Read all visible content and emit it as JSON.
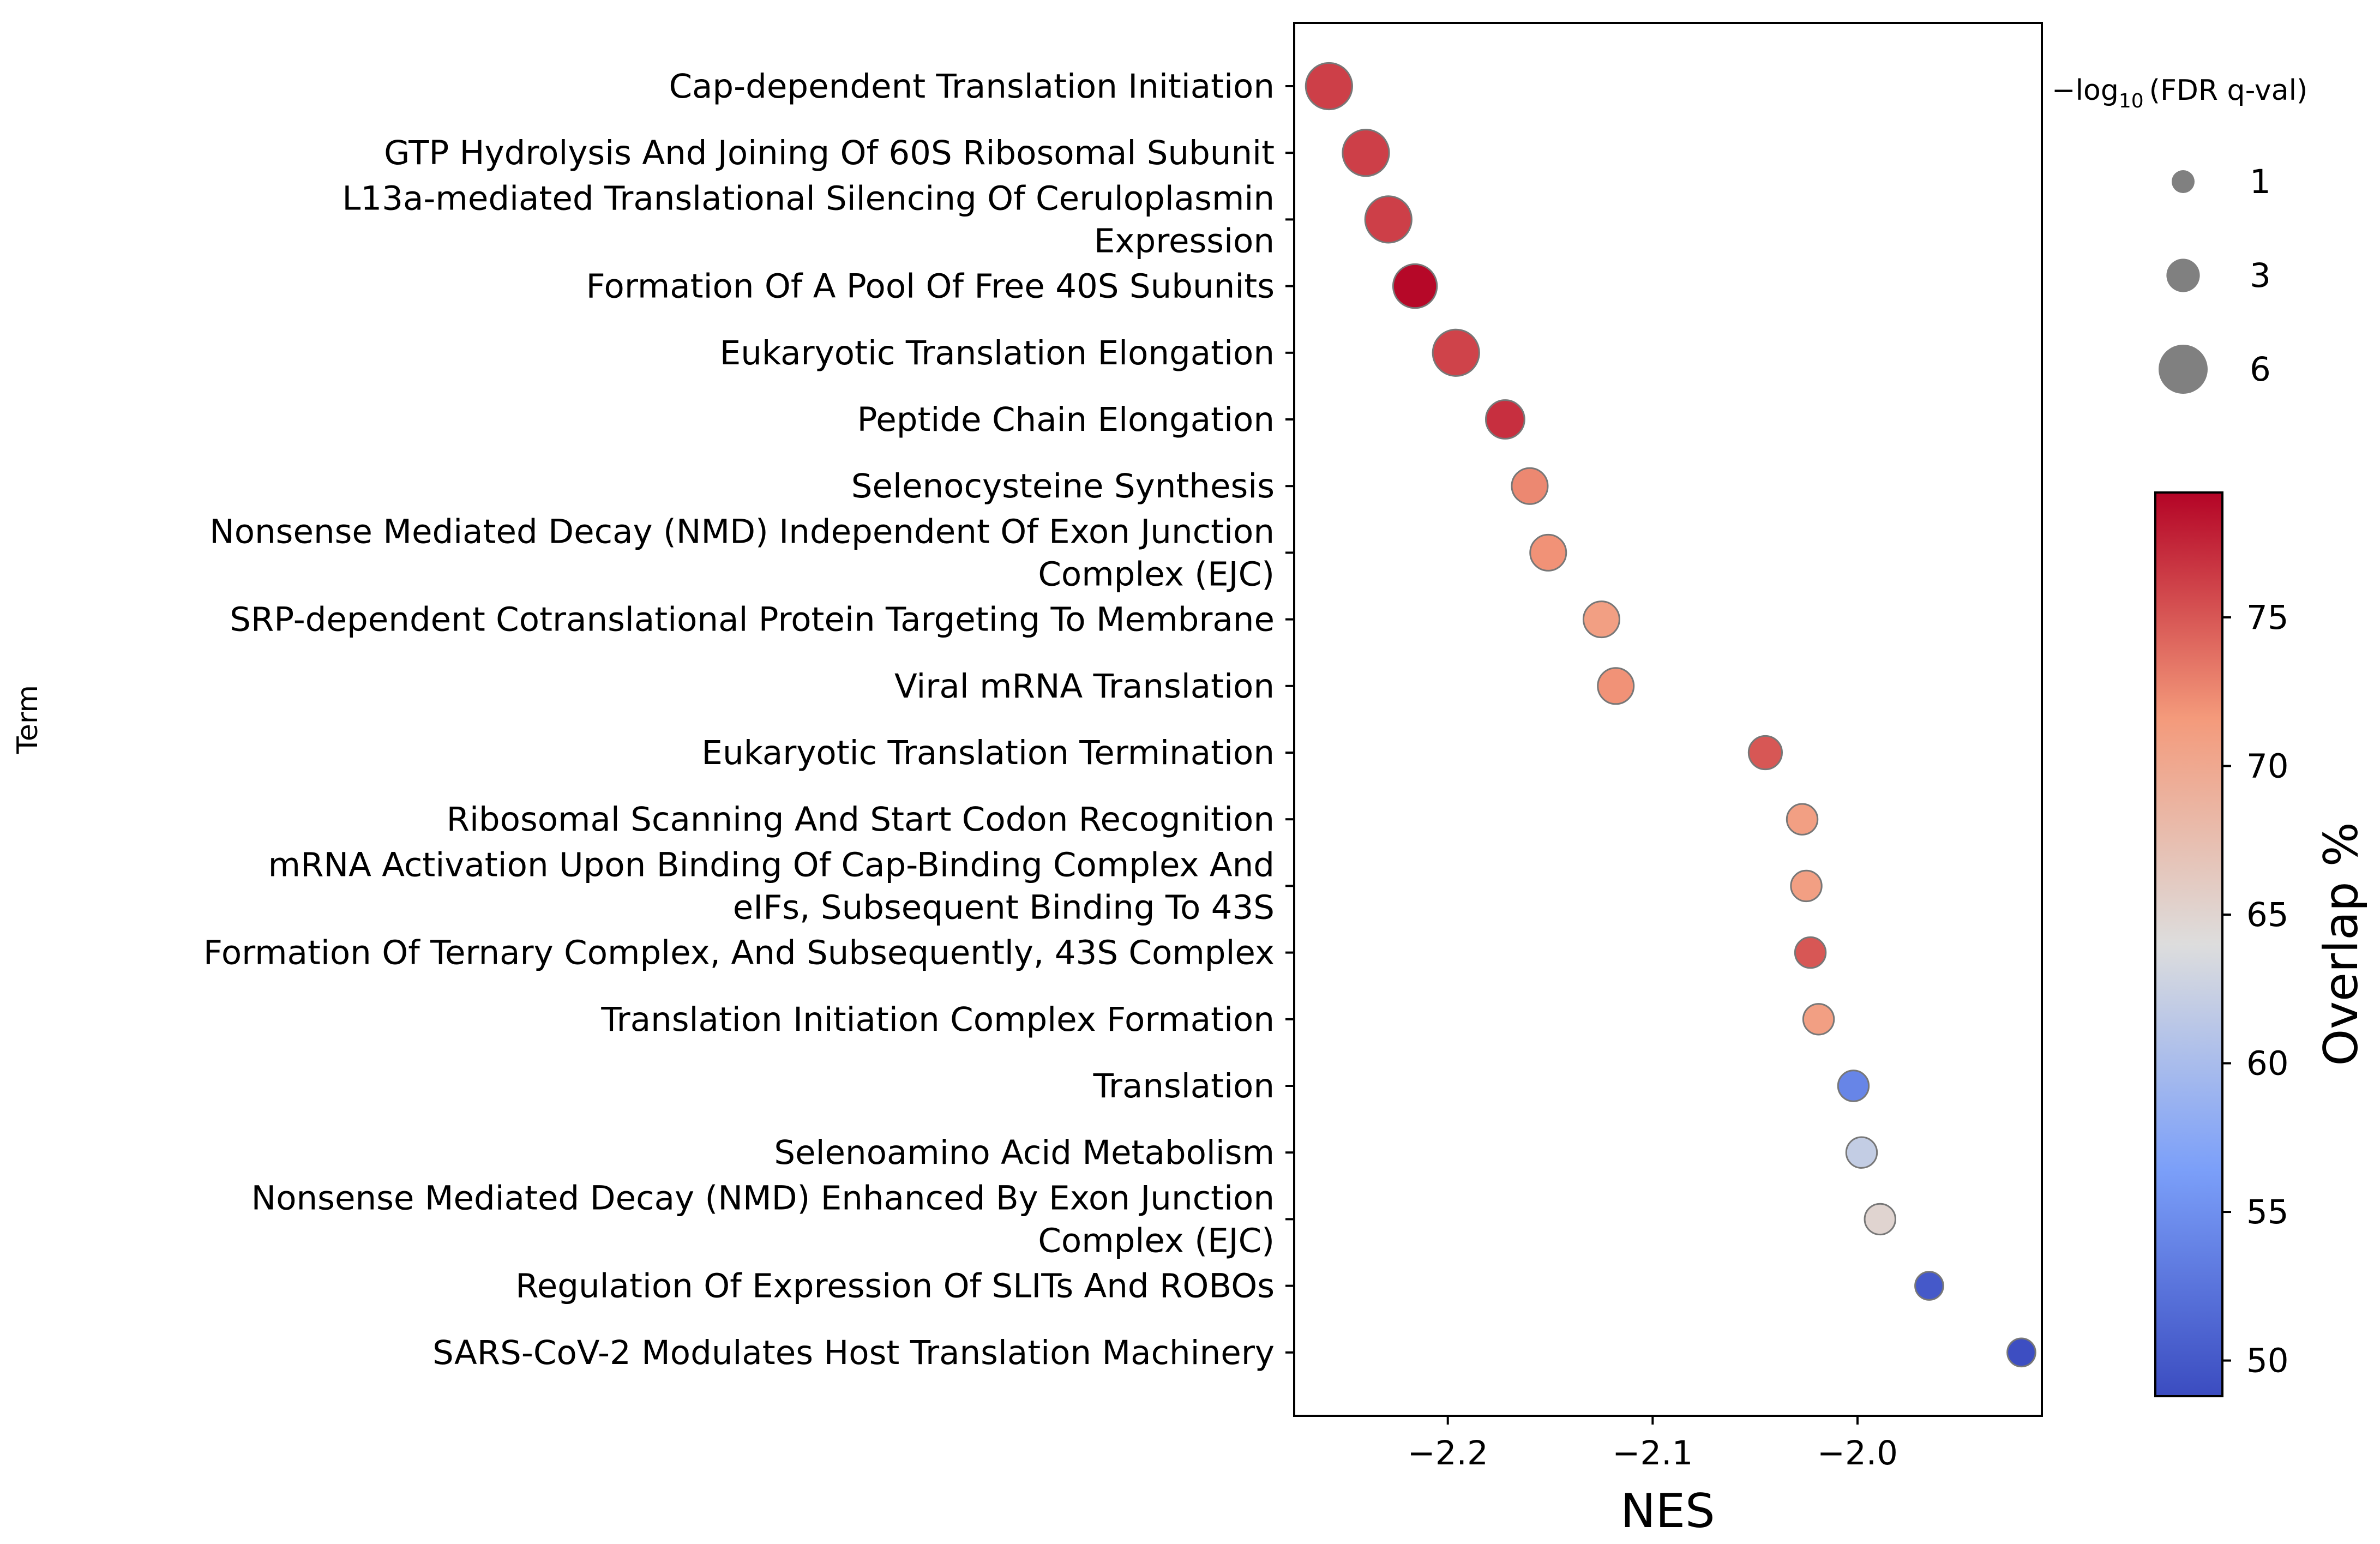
{
  "chart_data": {
    "type": "scatter",
    "title": "",
    "xlabel": "NES",
    "ylabel": "Term",
    "xlim": [
      -2.275,
      -1.91
    ],
    "xticks": [
      {
        "value": -2.2,
        "label": "−2.2"
      },
      {
        "value": -2.1,
        "label": "−2.1"
      },
      {
        "value": -2.0,
        "label": "−2.0"
      }
    ],
    "grid": false,
    "points": [
      {
        "term_lines": [
          "Cap-dependent Translation Initiation"
        ],
        "nes": -2.258,
        "overlap": 76.2,
        "neg_log10_fdr": 5.5
      },
      {
        "term_lines": [
          "GTP Hydrolysis And Joining Of 60S Ribosomal Subunit"
        ],
        "nes": -2.24,
        "overlap": 76.2,
        "neg_log10_fdr": 5.5
      },
      {
        "term_lines": [
          "L13a-mediated Translational Silencing Of Ceruloplasmin",
          "Expression"
        ],
        "nes": -2.229,
        "overlap": 76.2,
        "neg_log10_fdr": 5.5
      },
      {
        "term_lines": [
          "Formation Of A Pool Of Free 40S Subunits"
        ],
        "nes": -2.216,
        "overlap": 79.0,
        "neg_log10_fdr": 5.0
      },
      {
        "term_lines": [
          "Eukaryotic Translation Elongation"
        ],
        "nes": -2.196,
        "overlap": 76.0,
        "neg_log10_fdr": 5.5
      },
      {
        "term_lines": [
          "Peptide Chain Elongation"
        ],
        "nes": -2.172,
        "overlap": 77.0,
        "neg_log10_fdr": 4.0
      },
      {
        "term_lines": [
          "Selenocysteine Synthesis"
        ],
        "nes": -2.16,
        "overlap": 72.5,
        "neg_log10_fdr": 3.5
      },
      {
        "term_lines": [
          "Nonsense Mediated Decay (NMD) Independent Of Exon Junction",
          "Complex (EJC)"
        ],
        "nes": -2.151,
        "overlap": 72.0,
        "neg_log10_fdr": 3.5
      },
      {
        "term_lines": [
          "SRP-dependent Cotranslational Protein Targeting To Membrane"
        ],
        "nes": -2.125,
        "overlap": 71.0,
        "neg_log10_fdr": 3.5
      },
      {
        "term_lines": [
          "Viral mRNA Translation"
        ],
        "nes": -2.118,
        "overlap": 72.0,
        "neg_log10_fdr": 3.5
      },
      {
        "term_lines": [
          "Eukaryotic Translation Termination"
        ],
        "nes": -2.045,
        "overlap": 75.0,
        "neg_log10_fdr": 3.0
      },
      {
        "term_lines": [
          "Ribosomal Scanning And Start Codon Recognition"
        ],
        "nes": -2.027,
        "overlap": 71.0,
        "neg_log10_fdr": 2.5
      },
      {
        "term_lines": [
          "mRNA Activation Upon Binding Of Cap-Binding Complex And",
          "eIFs, Subsequent Binding To 43S"
        ],
        "nes": -2.025,
        "overlap": 71.0,
        "neg_log10_fdr": 2.5
      },
      {
        "term_lines": [
          "Formation Of Ternary Complex, And Subsequently, 43S Complex"
        ],
        "nes": -2.023,
        "overlap": 75.0,
        "neg_log10_fdr": 2.5
      },
      {
        "term_lines": [
          "Translation Initiation Complex Formation"
        ],
        "nes": -2.019,
        "overlap": 71.0,
        "neg_log10_fdr": 2.5
      },
      {
        "term_lines": [
          "Translation"
        ],
        "nes": -2.002,
        "overlap": 54.0,
        "neg_log10_fdr": 2.5
      },
      {
        "term_lines": [
          "Selenoamino Acid Metabolism"
        ],
        "nes": -1.998,
        "overlap": 62.0,
        "neg_log10_fdr": 2.5
      },
      {
        "term_lines": [
          "Nonsense Mediated Decay (NMD) Enhanced By Exon Junction",
          "Complex (EJC)"
        ],
        "nes": -1.989,
        "overlap": 65.0,
        "neg_log10_fdr": 2.5
      },
      {
        "term_lines": [
          "Regulation Of Expression Of SLITs And ROBOs"
        ],
        "nes": -1.965,
        "overlap": 50.0,
        "neg_log10_fdr": 2.0
      },
      {
        "term_lines": [
          "SARS-CoV-2 Modulates Host Translation Machinery"
        ],
        "nes": -1.92,
        "overlap": 49.0,
        "neg_log10_fdr": 2.0
      }
    ],
    "size_legend": {
      "title_prefix": "−log",
      "title_sub": "10",
      "title_suffix": "(FDR q-val)",
      "entries": [
        {
          "value": 1,
          "label": "1"
        },
        {
          "value": 3,
          "label": "3"
        },
        {
          "value": 6,
          "label": "6"
        }
      ]
    },
    "colorbar": {
      "title": "Overlap %",
      "range": [
        48.8,
        79.2
      ],
      "ticks": [
        {
          "value": 50,
          "label": "50"
        },
        {
          "value": 55,
          "label": "55"
        },
        {
          "value": 60,
          "label": "60"
        },
        {
          "value": 65,
          "label": "65"
        },
        {
          "value": 70,
          "label": "70"
        },
        {
          "value": 75,
          "label": "75"
        }
      ],
      "colormap": "coolwarm",
      "stops": [
        {
          "t": 0.0,
          "color": "#3b4cc0"
        },
        {
          "t": 0.25,
          "color": "#7b9ff9"
        },
        {
          "t": 0.5,
          "color": "#dddddd"
        },
        {
          "t": 0.75,
          "color": "#f49a7b"
        },
        {
          "t": 1.0,
          "color": "#b40426"
        }
      ]
    },
    "marker_edge_color": "#777777",
    "legend_marker_color": "#808080"
  }
}
